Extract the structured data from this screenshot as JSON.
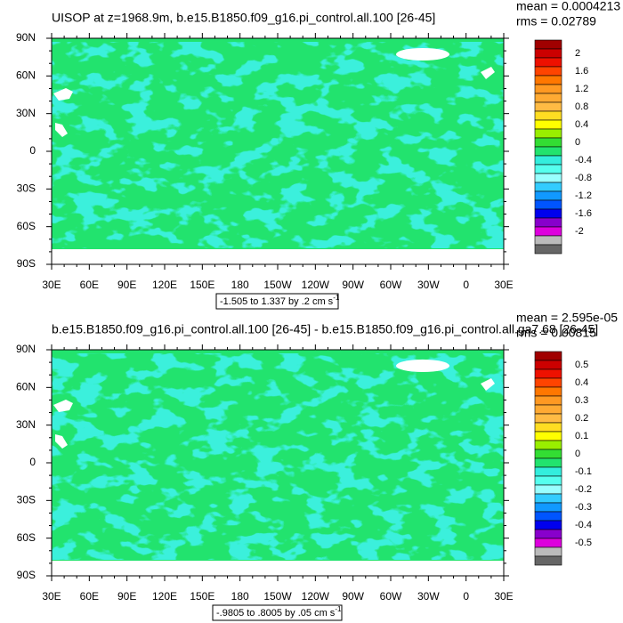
{
  "map": {
    "xlim": [
      30,
      390
    ],
    "xticks": [
      {
        "value": 30,
        "label": "30E"
      },
      {
        "value": 60,
        "label": "60E"
      },
      {
        "value": 90,
        "label": "90E"
      },
      {
        "value": 120,
        "label": "120E"
      },
      {
        "value": 150,
        "label": "150E"
      },
      {
        "value": 180,
        "label": "180"
      },
      {
        "value": 210,
        "label": "150W"
      },
      {
        "value": 240,
        "label": "120W"
      },
      {
        "value": 270,
        "label": "90W"
      },
      {
        "value": 300,
        "label": "60W"
      },
      {
        "value": 330,
        "label": "30W"
      },
      {
        "value": 360,
        "label": "0"
      },
      {
        "value": 390,
        "label": "30E"
      }
    ],
    "ylim": [
      -90,
      90
    ],
    "yticks": [
      {
        "value": 90,
        "label": "90N"
      },
      {
        "value": 60,
        "label": "60N"
      },
      {
        "value": 30,
        "label": "30N"
      },
      0,
      {
        "value": -30,
        "label": "30S"
      },
      {
        "value": -60,
        "label": "60S"
      },
      {
        "value": -90,
        "label": "90S"
      }
    ]
  },
  "panels": [
    {
      "title": "UISOP at z=1968.9m, b.e15.B1850.f09_g16.pi_control.all.100 [26-45]",
      "mean": "mean = 0.0004213",
      "rms": "rms = 0.02789",
      "range_label": "-1.505 to 1.337 by .2 cm s",
      "range_sup": "-1",
      "colorbar": {
        "labels": [
          2,
          1.6,
          1.2,
          0.8,
          0.4,
          0,
          -0.4,
          -0.8,
          -1.2,
          -1.6,
          -2
        ],
        "colors": [
          "#a00000",
          "#cc0000",
          "#ee1100",
          "#ff4400",
          "#ff7700",
          "#ff9922",
          "#ffaa33",
          "#ffbb44",
          "#ffdd22",
          "#ffff00",
          "#99ee00",
          "#33dd33",
          "#22e36e",
          "#33eedd",
          "#55ffee",
          "#99ffff",
          "#33ccff",
          "#1199ff",
          "#0055ff",
          "#0000ee",
          "#8800cc",
          "#dd00dd",
          "#bbbbbb",
          "#666666"
        ]
      }
    },
    {
      "title": "b.e15.B1850.f09_g16.pi_control.all.100 [26-45] - b.e15.B1850.f09_g16.pi_control.all.ga7.68 [26-45]",
      "mean": "mean = 2.595e-05",
      "rms": "rms = 0.00815",
      "range_label": "-.9805 to .8005 by .05 cm s",
      "range_sup": "-1",
      "colorbar": {
        "labels": [
          0.5,
          0.4,
          0.3,
          0.2,
          0.1,
          0,
          -0.1,
          -0.2,
          -0.3,
          -0.4,
          -0.5
        ],
        "colors": [
          "#a00000",
          "#cc0000",
          "#ee1100",
          "#ff4400",
          "#ff7700",
          "#ff9922",
          "#ffaa33",
          "#ffbb44",
          "#ffdd22",
          "#ffff00",
          "#99ee00",
          "#33dd33",
          "#22e36e",
          "#33eedd",
          "#55ffee",
          "#99ffff",
          "#33ccff",
          "#1199ff",
          "#0055ff",
          "#0000ee",
          "#8800cc",
          "#dd00dd",
          "#bbbbbb",
          "#666666"
        ]
      }
    }
  ]
}
